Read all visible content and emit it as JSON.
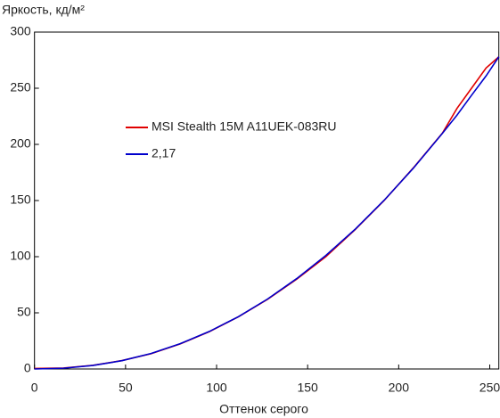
{
  "chart_data": {
    "type": "line",
    "title": "Яркость, кд/м²",
    "xlabel": "Оттенок серого",
    "x": [
      0,
      16,
      32,
      48,
      64,
      80,
      96,
      112,
      128,
      144,
      160,
      176,
      192,
      208,
      224,
      232,
      240,
      248,
      255
    ],
    "series": [
      {
        "name": "MSI Stealth 15M A11UEK-083RU",
        "color": "#e00000",
        "values": [
          0.5,
          0.9,
          3.2,
          7.5,
          13.6,
          22.3,
          33.2,
          46.5,
          62.0,
          80.0,
          100.0,
          124.0,
          150.0,
          179.0,
          210.0,
          232,
          250,
          268,
          278
        ]
      },
      {
        "name": "2,17",
        "color": "#0000cc",
        "values": [
          0,
          0.7,
          3.1,
          7.4,
          13.8,
          22.5,
          33.4,
          46.6,
          62.3,
          80.5,
          101.1,
          124.3,
          150.2,
          178.7,
          209.8,
          226,
          243.7,
          261,
          278
        ]
      }
    ],
    "xlim": [
      0,
      255
    ],
    "xticks": [
      0,
      50,
      100,
      150,
      200,
      250
    ],
    "ylim": [
      0,
      300
    ],
    "yticks": [
      0,
      50,
      100,
      150,
      200,
      250,
      300
    ]
  }
}
